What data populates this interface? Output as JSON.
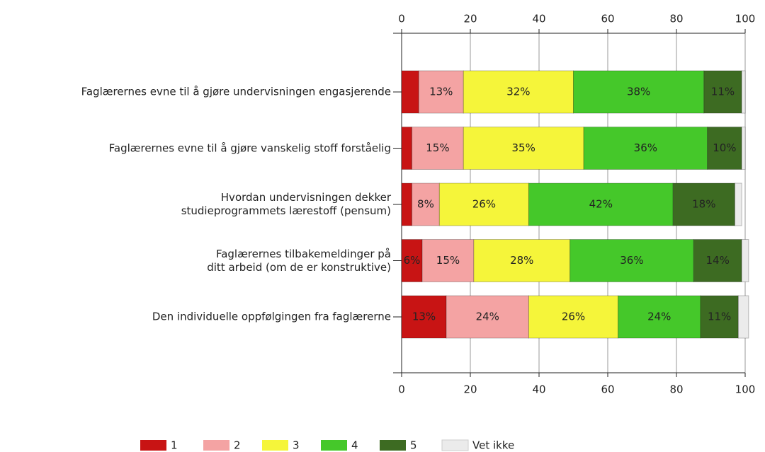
{
  "chart_data": {
    "type": "stacked_bar_horizontal",
    "categories": [
      "Faglærernes evne til å gjøre undervisningen engasjerende",
      "Faglærernes evne til å gjøre vanskelig stoff forståelig",
      "Hvordan undervisningen dekker\nstudieprogrammets lærestoff (pensum)",
      "Faglærernes tilbakemeldinger på\nditt arbeid (om de er konstruktive)",
      "Den individuelle oppfølgingen fra faglærerne"
    ],
    "series": [
      {
        "name": "1",
        "color": "#c81414",
        "values": [
          5,
          3,
          3,
          6,
          13
        ],
        "value_labels": [
          null,
          null,
          null,
          "6%",
          "13%"
        ]
      },
      {
        "name": "2",
        "color": "#f4a3a3",
        "values": [
          13,
          15,
          8,
          15,
          24
        ],
        "value_labels": [
          "13%",
          "15%",
          "8%",
          "15%",
          "24%"
        ]
      },
      {
        "name": "3",
        "color": "#f5f53a",
        "values": [
          32,
          35,
          26,
          28,
          26
        ],
        "value_labels": [
          "32%",
          "35%",
          "26%",
          "28%",
          "26%"
        ]
      },
      {
        "name": "4",
        "color": "#45c82a",
        "values": [
          38,
          36,
          42,
          36,
          24
        ],
        "value_labels": [
          "38%",
          "36%",
          "42%",
          "36%",
          "24%"
        ]
      },
      {
        "name": "5",
        "color": "#3d6b22",
        "values": [
          11,
          10,
          18,
          14,
          11
        ],
        "value_labels": [
          "11%",
          "10%",
          "18%",
          "14%",
          "11%"
        ]
      },
      {
        "name": "Vet ikke",
        "color": "#ebebeb",
        "values": [
          1,
          1,
          2,
          2,
          3
        ]
      }
    ],
    "xlim": [
      0,
      100
    ],
    "xticks": [
      0,
      20,
      40,
      60,
      80,
      100
    ],
    "grid": true
  }
}
